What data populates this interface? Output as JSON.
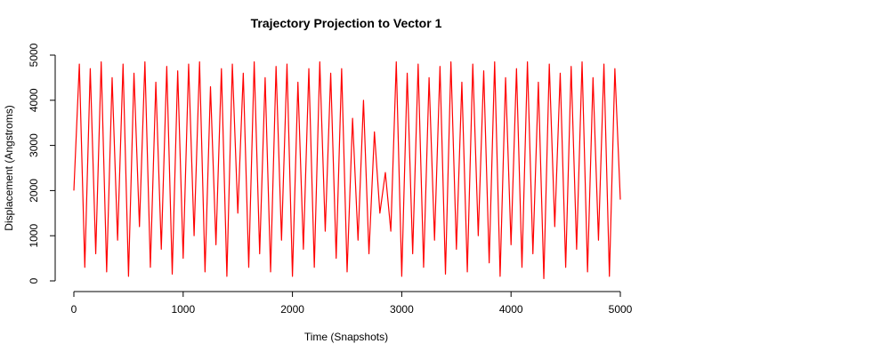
{
  "chart_data": {
    "type": "line",
    "title": "Trajectory Projection to Vector 1",
    "xlabel": "Time (Snapshots)",
    "ylabel": "Displacement (Angstroms)",
    "x": [
      0,
      50,
      100,
      150,
      200,
      250,
      300,
      350,
      400,
      450,
      500,
      550,
      600,
      650,
      700,
      750,
      800,
      850,
      900,
      950,
      1000,
      1050,
      1100,
      1150,
      1200,
      1250,
      1300,
      1350,
      1400,
      1450,
      1500,
      1550,
      1600,
      1650,
      1700,
      1750,
      1800,
      1850,
      1900,
      1950,
      2000,
      2050,
      2100,
      2150,
      2200,
      2250,
      2300,
      2350,
      2400,
      2450,
      2500,
      2550,
      2600,
      2650,
      2700,
      2750,
      2800,
      2850,
      2900,
      2950,
      3000,
      3050,
      3100,
      3150,
      3200,
      3250,
      3300,
      3350,
      3400,
      3450,
      3500,
      3550,
      3600,
      3650,
      3700,
      3750,
      3800,
      3850,
      3900,
      3950,
      4000,
      4050,
      4100,
      4150,
      4200,
      4250,
      4300,
      4350,
      4400,
      4450,
      4500,
      4550,
      4600,
      4650,
      4700,
      4750,
      4800,
      4850,
      4900,
      4950,
      5000
    ],
    "series": [
      {
        "color": "#ff0000",
        "values": [
          2000,
          4800,
          300,
          4700,
          600,
          4850,
          200,
          4500,
          900,
          4800,
          100,
          4600,
          1200,
          4850,
          300,
          4400,
          700,
          4750,
          150,
          4650,
          500,
          4800,
          1000,
          4850,
          200,
          4300,
          800,
          4700,
          100,
          4800,
          1500,
          4600,
          300,
          4850,
          600,
          4500,
          200,
          4750,
          900,
          4800,
          100,
          4400,
          700,
          4700,
          300,
          4850,
          1100,
          4600,
          500,
          4700,
          200,
          3600,
          900,
          4000,
          600,
          3300,
          1500,
          2400,
          1100,
          4850,
          100,
          4600,
          600,
          4800,
          300,
          4500,
          900,
          4750,
          150,
          4850,
          700,
          4400,
          200,
          4800,
          1000,
          4650,
          400,
          4850,
          100,
          4500,
          800,
          4700,
          300,
          4850,
          600,
          4400,
          50,
          4800,
          1200,
          4600,
          300,
          4750,
          700,
          4850,
          200,
          4500,
          900,
          4800,
          100,
          4700,
          1800
        ]
      }
    ],
    "xlim": [
      0,
      5000
    ],
    "ylim": [
      0,
      5000
    ],
    "xticks": [
      0,
      1000,
      2000,
      3000,
      4000,
      5000
    ],
    "yticks": [
      0,
      1000,
      2000,
      3000,
      4000,
      5000
    ]
  }
}
